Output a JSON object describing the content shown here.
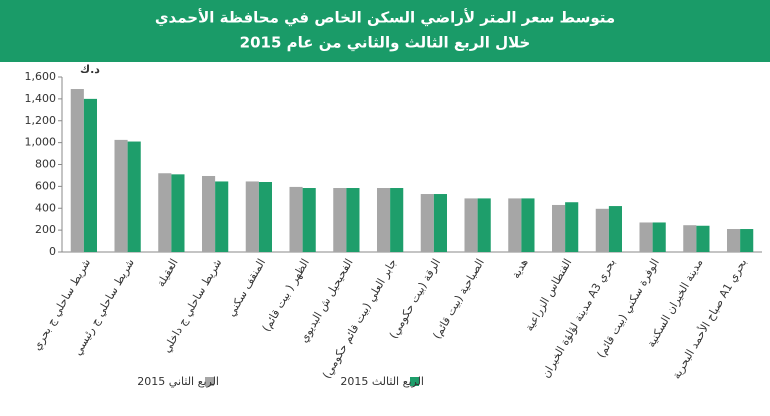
{
  "chart_data": {
    "type": "bar",
    "title": "متوسط سعر المتر لأراضي السكن الخاص في محافظة الأحمدي",
    "subtitle": "خلال الربع الثالث والثاني من عام 2015",
    "unit_label": "د.ك",
    "categories": [
      "شريط ساحلي ج بحري",
      "شريط ساحلي ج رئيسي",
      "العقيلة",
      "شريط ساحلي ج داخلي",
      "المنقف سكني",
      "الظهر ( بيت قائم)",
      "الفحيحيل ش البديوي",
      "جابر العلي (بيت قائم حكومي)",
      "الرقة (بيت حكومي)",
      "الصباحية (بيت قائم)",
      "هدية",
      "الفنطاس الزراعية",
      "مدينة لؤلؤة الخيران A3 بحري",
      "الوفرة سكني (بيت قائم)",
      "مدينة الخيران السكنية",
      "صباح الأحمد البحرية A1 بحري"
    ],
    "series": [
      {
        "name": "الربع الثاني 2015",
        "color": "#a6a6a6",
        "values": [
          1490,
          1025,
          720,
          695,
          645,
          595,
          585,
          585,
          530,
          490,
          490,
          430,
          395,
          270,
          245,
          210
        ]
      },
      {
        "name": "الربع الثالث 2015",
        "color": "#1e9e6b",
        "values": [
          1400,
          1010,
          710,
          645,
          640,
          585,
          585,
          585,
          530,
          490,
          490,
          455,
          420,
          270,
          240,
          210
        ]
      }
    ],
    "ylim": [
      0,
      1600
    ],
    "yticks": [
      0,
      200,
      400,
      600,
      800,
      {
        "value": 1000,
        "label": "1,000"
      },
      {
        "value": 1200,
        "label": "1,200"
      },
      {
        "value": 1400,
        "label": "1,400"
      },
      {
        "value": 1600,
        "label": "1,600"
      }
    ],
    "grid": false,
    "legend": "bottom"
  }
}
